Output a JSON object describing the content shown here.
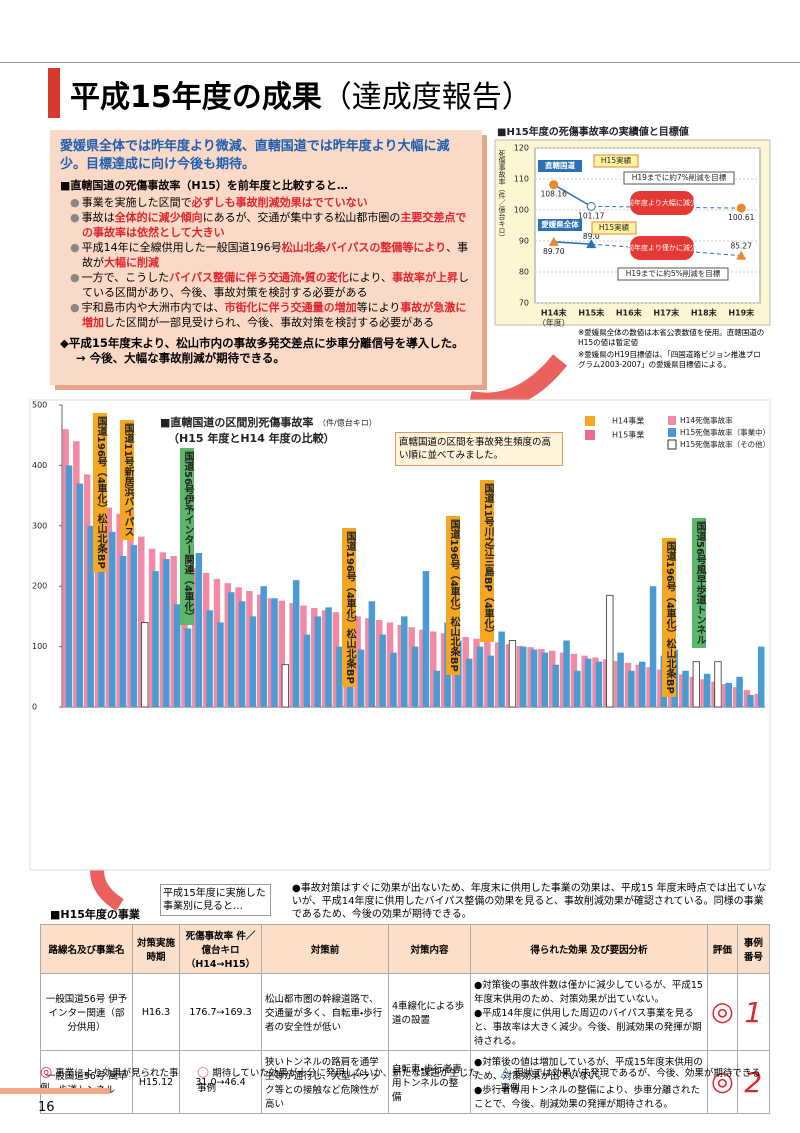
{
  "header": {
    "title": "平成15年度の成果",
    "title_sub": "（達成度報告）"
  },
  "summary": {
    "lead": "愛媛県全体では昨年度より微減、直轄国道では昨年度より大幅に減少。目標達成に向け今後も期待。",
    "subheading": "■直轄国道の死傷事故率（H15）を前年度と比較すると…",
    "bullets": [
      [
        {
          "text": "事業を実施した区間で"
        },
        {
          "text": "必ずしも事故削減効果はでていない",
          "red": true
        }
      ],
      [
        {
          "text": "事故は"
        },
        {
          "text": "全体的に減少傾向",
          "red": true
        },
        {
          "text": "にあるが、交通が集中する松山都市圏の"
        },
        {
          "text": "主要交差点での事故率は依然として大きい",
          "red": true
        }
      ],
      [
        {
          "text": "平成14年に全線供用した一般国道196号"
        },
        {
          "text": "松山北条バイパスの整備等により",
          "red": true
        },
        {
          "text": "、事故が"
        },
        {
          "text": "大幅に削減",
          "red": true
        }
      ],
      [
        {
          "text": "一方で、こうした"
        },
        {
          "text": "バイパス整備に伴う交通流・質の変化",
          "red": true
        },
        {
          "text": "により、"
        },
        {
          "text": "事故率が上昇",
          "red": true
        },
        {
          "text": "している区間があり、今後、事故対策を検討する必要がある"
        }
      ],
      [
        {
          "text": "宇和島市内や大洲市内では、"
        },
        {
          "text": "市街化に伴う交通量の増加",
          "red": true
        },
        {
          "text": "等により"
        },
        {
          "text": "事故が急激に増加",
          "red": true
        },
        {
          "text": "した区間が一部見受けられ、今後、事故対策を検討する必要がある"
        }
      ]
    ],
    "closing": "◆平成15年度末より、松山市内の事故多発交差点に歩車分離信号を導入した。",
    "closing_arrow": "→ 今後、大幅な事故削減が期待できる。"
  },
  "chart_data": [
    {
      "type": "line",
      "title": "■H15年度の死傷事故率の実績値と目標値",
      "y_label": "死傷事故率（件／億台キロ）",
      "x_unit": "（年度）",
      "categories": [
        "H14末",
        "H15末",
        "H16末",
        "H17末",
        "H18末",
        "H19末"
      ],
      "ylim": [
        70,
        120
      ],
      "yticks": [
        70,
        80,
        90,
        100,
        110,
        120
      ],
      "grid": true,
      "series": [
        {
          "name": "直轄国道",
          "color": "#e8892a",
          "line_color": "#2b6fb4",
          "values": [
            108.16,
            101.17,
            null,
            null,
            null,
            100.61
          ],
          "value_labels": [
            "108.16",
            "101.17",
            null,
            null,
            null,
            "100.61"
          ]
        },
        {
          "name": "愛媛県全体",
          "color": "#e8892a",
          "line_color": "#2b6fb4",
          "values": [
            89.7,
            89.0,
            null,
            null,
            null,
            85.27
          ],
          "value_labels": [
            "89.70",
            "89.0",
            null,
            null,
            null,
            "85.27"
          ]
        }
      ],
      "annotations": [
        "H15実績",
        "H19までに約7%削減を目標",
        "前年度より大幅に減少",
        "H15実績",
        "前年度より僅かに減少",
        "H19までに約5%削減を目標"
      ],
      "notes": [
        "※愛媛県全体の数値は本省公表数値を使用。直轄国道のH15の値は暫定値",
        "※愛媛県のH19目標値は、「四国道路ビジョン推進プログラム2003-2007」の愛媛県目標値による。"
      ]
    },
    {
      "type": "bar",
      "title": "■直轄国道の区間別死傷事故率",
      "unit": "（件/億台キロ）",
      "subtitle": "（H15 年度とH14 年度の比較）",
      "note": "直轄国道の区間を事故発生頻度の高い順に並べてみました。",
      "ylim": [
        0,
        500
      ],
      "yticks": [
        0,
        100,
        200,
        300,
        400,
        500
      ],
      "project_legend": [
        {
          "name": "H14事業",
          "color": "#f5a623"
        },
        {
          "name": "H15事業",
          "color": "#f06a8a"
        }
      ],
      "series": [
        {
          "name": "H14死傷事故率",
          "color": "#f28aa6",
          "values": [
            460,
            440,
            385,
            350,
            330,
            320,
            300,
            282,
            262,
            256,
            250,
            240,
            230,
            222,
            212,
            205,
            198,
            192,
            186,
            180,
            176,
            172,
            168,
            164,
            160,
            157,
            154,
            150,
            147,
            144,
            140,
            136,
            132,
            128,
            125,
            122,
            119,
            116,
            113,
            110,
            107,
            104,
            101,
            99,
            96,
            93,
            90,
            88,
            85,
            82,
            79,
            76,
            73,
            70,
            66,
            62,
            58,
            54,
            50,
            46,
            42,
            38,
            33,
            28,
            22
          ]
        },
        {
          "name": "H15死傷事故率（事業中）",
          "color": "#4a9bd1",
          "values": [
            400,
            370,
            300,
            335,
            290,
            250,
            268,
            null,
            225,
            245,
            170,
            130,
            255,
            160,
            140,
            190,
            175,
            150,
            200,
            180,
            null,
            210,
            120,
            150,
            165,
            100,
            130,
            95,
            175,
            120,
            90,
            150,
            100,
            225,
            60,
            140,
            110,
            80,
            100,
            85,
            125,
            null,
            100,
            95,
            90,
            70,
            110,
            60,
            80,
            75,
            null,
            90,
            60,
            75,
            200,
            85,
            95,
            60,
            null,
            55,
            null,
            40,
            50,
            20,
            100
          ]
        },
        {
          "name": "H15死傷事故率（その他）",
          "color": "#ffffff",
          "values": [
            null,
            null,
            null,
            null,
            null,
            null,
            null,
            140,
            null,
            null,
            null,
            null,
            null,
            null,
            null,
            null,
            null,
            null,
            null,
            null,
            70,
            null,
            null,
            null,
            null,
            null,
            null,
            null,
            null,
            null,
            null,
            null,
            null,
            null,
            null,
            null,
            null,
            null,
            null,
            null,
            null,
            110,
            null,
            null,
            null,
            null,
            null,
            null,
            null,
            null,
            185,
            null,
            null,
            null,
            null,
            null,
            null,
            null,
            75,
            null,
            75,
            null,
            null,
            null,
            null
          ]
        }
      ],
      "callouts": [
        {
          "text": "国道196号（4車化）松山北条BP",
          "kind": "H14"
        },
        {
          "text": "国道11号新居浜バイパス",
          "kind": "H14"
        },
        {
          "text": "国道56号伊予インター関連（4車化）",
          "kind": "H15"
        },
        {
          "text": "国道196号（4車化）松山北条BP",
          "kind": "H14"
        },
        {
          "text": "国道196号（4車化）松山北条BP",
          "kind": "H14"
        },
        {
          "text": "国道11号川之江三島BP（4車化）",
          "kind": "H14"
        },
        {
          "text": "国道196号（4車化）松山北条BP",
          "kind": "H14"
        },
        {
          "text": "国道56号風早歩道トンネル",
          "kind": "H15"
        }
      ]
    }
  ],
  "middle_note": {
    "left": "平成15年度に実施した事業別に見ると…",
    "right": "●事故対策はすぐに効果が出ないため、年度末に供用した事業の効果は、平成15 年度末時点では出ていないが、平成14年度に供用したバイパス整備の効果を見ると、事故削減効果が確認されている。同様の事業であるため、今後の効果が期待できる。"
  },
  "table": {
    "title": "■H15年度の事業",
    "headers": [
      "路線名及び事業名",
      "対策実施時期",
      "死傷事故率 件／億台キロ（H14→H15）",
      "対策前",
      "対策内容",
      "得られた効果 及び要因分析",
      "評価",
      "事例番号"
    ],
    "rows": [
      {
        "name": "一般国道56号 伊予インター関連（部分供用）",
        "period": "H16.3",
        "rate": "176.7→169.3",
        "before": "松山都市圏の幹線道路で、交通量が多く、自転車・歩行者の安全性が低い",
        "measure": "4車線化による歩道の設置",
        "effects": [
          "●対策後の事故件数は僅かに減少しているが、平成15年度末供用のため、対策効果が出ていない。",
          "●平成14年度に供用した周辺のバイパス事業を見ると、事故率は大きく減少。今後、削減効果の発揮が期待される。"
        ],
        "number": "1"
      },
      {
        "name": "一般国道56号 風早歩道トンネル",
        "period": "H15.12",
        "rate": "31.0→46.4",
        "before": "狭いトンネルの路肩を通学生等が通行し、大型トラック等との接触など危険性が高い",
        "measure": "自転車・歩行者専用トンネルの整備",
        "effects": [
          "●対策後の値は増加しているが、平成15年度末供用のため、対策効果が出ていない。",
          "●歩行者専用トンネルの整備により、歩車分離されたことで、今後、削減効果の発揮が期待される。"
        ],
        "number": "2"
      }
    ]
  },
  "legend": [
    "事業により効果が見られた事例",
    "期待していた効果が十分に発現しないか、新たな課題が生じた事例",
    "現状では効果が未発現であるが、今後、効果が期待できる事例"
  ],
  "page_number": "16"
}
